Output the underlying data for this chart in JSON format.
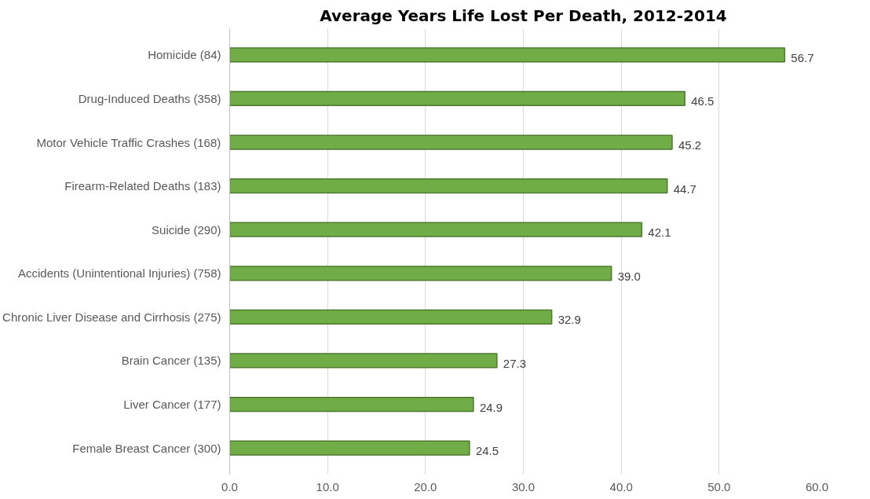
{
  "chart_data": {
    "type": "bar",
    "orientation": "horizontal",
    "title": "Average Years Life Lost Per Death, 2012-2014",
    "categories": [
      "Homicide (84)",
      "Drug-Induced Deaths (358)",
      "Motor Vehicle Traffic Crashes (168)",
      "Firearm-Related Deaths (183)",
      "Suicide (290)",
      "Accidents (Unintentional Injuries) (758)",
      "Chronic Liver Disease and Cirrhosis (275)",
      "Brain Cancer (135)",
      "Liver Cancer (177)",
      "Female Breast Cancer (300)"
    ],
    "values": [
      56.7,
      46.5,
      45.2,
      44.7,
      42.1,
      39.0,
      32.9,
      27.3,
      24.9,
      24.5
    ],
    "value_labels": [
      "56.7",
      "46.5",
      "45.2",
      "44.7",
      "42.1",
      "39.0",
      "32.9",
      "27.3",
      "24.9",
      "24.5"
    ],
    "color": "#70ad47",
    "xlim": [
      0,
      60
    ],
    "xticks": [
      {
        "value": 0,
        "label": "0.0"
      },
      {
        "value": 10,
        "label": "10.0"
      },
      {
        "value": 20,
        "label": "20.0"
      },
      {
        "value": 30,
        "label": "30.0"
      },
      {
        "value": 40,
        "label": "40.0"
      },
      {
        "value": 50,
        "label": "50.0"
      },
      {
        "value": 60,
        "label": "60.0"
      }
    ],
    "grid": "x"
  }
}
